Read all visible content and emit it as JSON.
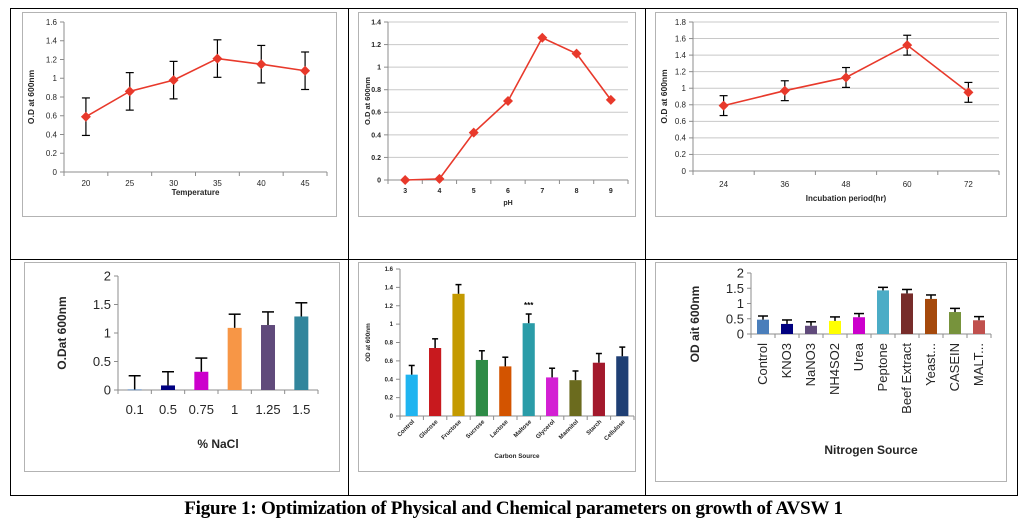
{
  "figure": {
    "caption": "Figure 1: Optimization of Physical and Chemical parameters on  growth of AVSW 1"
  },
  "chart_data": [
    {
      "id": "temperature",
      "type": "line",
      "title": "",
      "xlabel": "Temperature",
      "ylabel": "O.D at 600nm",
      "categories": [
        "20",
        "25",
        "30",
        "35",
        "40",
        "45"
      ],
      "values": [
        0.59,
        0.86,
        0.98,
        1.21,
        1.15,
        1.08
      ],
      "errors": [
        0.2,
        0.2,
        0.2,
        0.2,
        0.2,
        0.2
      ],
      "ylim": [
        0,
        1.6
      ],
      "yticks": [
        "0",
        "0.2",
        "0.4",
        "0.6",
        "0.8",
        "1",
        "1.2",
        "1.4",
        "1.6"
      ],
      "grid": false,
      "color": "#e8392b"
    },
    {
      "id": "ph",
      "type": "line",
      "title": "",
      "xlabel": "pH",
      "ylabel": "O.D at 600nm",
      "categories": [
        "3",
        "4",
        "5",
        "6",
        "7",
        "8",
        "9"
      ],
      "values": [
        0.0,
        0.01,
        0.42,
        0.7,
        1.26,
        1.12,
        0.71
      ],
      "ylim": [
        0,
        1.4
      ],
      "yticks": [
        "0",
        "0.2",
        "0.4",
        "0.6",
        "0.8",
        "1",
        "1.2",
        "1.4"
      ],
      "grid": true,
      "color": "#e8392b"
    },
    {
      "id": "incubation",
      "type": "line",
      "title": "",
      "xlabel": "Incubation period(hr)",
      "ylabel": "O.D at 600nm",
      "categories": [
        "24",
        "36",
        "48",
        "60",
        "72"
      ],
      "values": [
        0.79,
        0.97,
        1.13,
        1.52,
        0.95
      ],
      "errors": [
        0.12,
        0.12,
        0.12,
        0.12,
        0.12
      ],
      "ylim": [
        0,
        1.8
      ],
      "yticks": [
        "0",
        "0.2",
        "0.4",
        "0.6",
        "0.8",
        "1",
        "1.2",
        "1.4",
        "1.6",
        "1.8"
      ],
      "grid": true,
      "color": "#e8392b"
    },
    {
      "id": "nacl",
      "type": "bar",
      "title": "",
      "xlabel": "% NaCl",
      "ylabel": "O.Dat 600nm",
      "categories": [
        "0.1",
        "0.5",
        "0.75",
        "1",
        "1.25",
        "1.5"
      ],
      "values": [
        0.01,
        0.08,
        0.32,
        1.09,
        1.14,
        1.29
      ],
      "errors": [
        0.24,
        0.24,
        0.24,
        0.24,
        0.23,
        0.24
      ],
      "colors": [
        "#4f81bd",
        "#000080",
        "#cc00cc",
        "#f79646",
        "#604a7b",
        "#31859c"
      ],
      "ylim": [
        0,
        2
      ],
      "yticks": [
        "0",
        "0.5",
        "1",
        "1.5",
        "2"
      ],
      "grid": false
    },
    {
      "id": "carbon",
      "type": "bar",
      "title": "",
      "xlabel": "Carbon Source",
      "ylabel": "OD at 600nm",
      "categories": [
        "Control",
        "Glucose",
        "Fructose",
        "Sucrose",
        "Lactose",
        "Maltose",
        "Glycerol",
        "Mannitol",
        "Starch",
        "Cellulose"
      ],
      "values": [
        0.45,
        0.74,
        1.33,
        0.61,
        0.54,
        1.01,
        0.42,
        0.39,
        0.58,
        0.65
      ],
      "errors": [
        0.1,
        0.1,
        0.1,
        0.1,
        0.1,
        0.1,
        0.1,
        0.1,
        0.1,
        0.1
      ],
      "colors": [
        "#1fb4f0",
        "#c8191e",
        "#c49a00",
        "#2e8b46",
        "#d35400",
        "#2a9ca8",
        "#d31fd3",
        "#6b6b1e",
        "#a3192c",
        "#1f3f74"
      ],
      "annotations": [
        {
          "category": "Maltose",
          "text": "***"
        }
      ],
      "ylim": [
        0,
        1.6
      ],
      "yticks": [
        "0",
        "0.2",
        "0.4",
        "0.6",
        "0.8",
        "1",
        "1.2",
        "1.4",
        "1.6"
      ],
      "grid": false
    },
    {
      "id": "nitrogen",
      "type": "bar",
      "title": "",
      "xlabel": "Nitrogen Source",
      "ylabel": "OD ait 600nm",
      "categories": [
        "Control",
        "KNO3",
        "NaNO3",
        "NH4SO2",
        "Urea",
        "Peptone",
        "Beef Extract",
        "Yeast...",
        "CASEIN",
        "MALT..."
      ],
      "values": [
        0.47,
        0.33,
        0.27,
        0.43,
        0.55,
        1.43,
        1.33,
        1.15,
        0.72,
        0.45
      ],
      "errors": [
        0.12,
        0.13,
        0.13,
        0.13,
        0.12,
        0.1,
        0.13,
        0.13,
        0.12,
        0.12
      ],
      "colors": [
        "#4a7ebb",
        "#000080",
        "#604a7b",
        "#ffff00",
        "#cc00cc",
        "#4bacc6",
        "#772c2a",
        "#a5490c",
        "#77933c",
        "#c0504d"
      ],
      "ylim": [
        0,
        2
      ],
      "yticks": [
        "0",
        "0.5",
        "1",
        "1.5",
        "2"
      ],
      "grid": false
    }
  ]
}
